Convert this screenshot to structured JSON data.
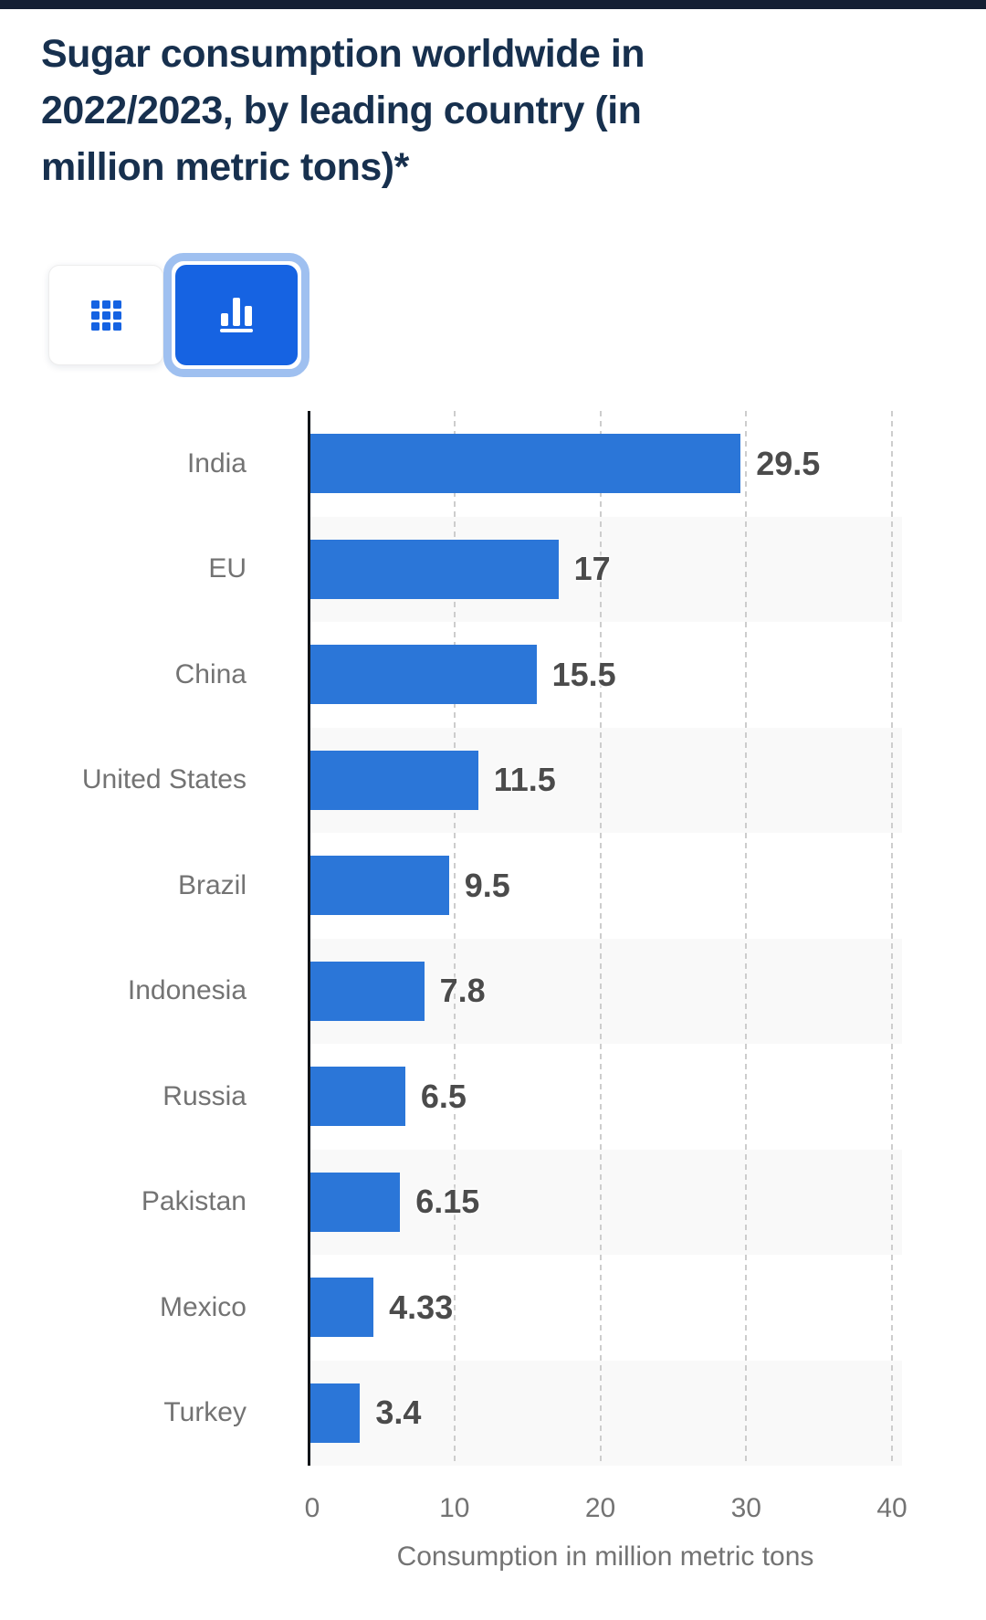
{
  "header": {
    "title": "Sugar consumption worldwide in 2022/2023, by leading country (in million metric tons)*"
  },
  "toolbar": {
    "table_button_icon": "grid-icon",
    "chart_button_icon": "bar-chart-icon",
    "selected_view": "bar-chart"
  },
  "chart_data": {
    "type": "bar",
    "orientation": "horizontal",
    "categories": [
      "India",
      "EU",
      "China",
      "United States",
      "Brazil",
      "Indonesia",
      "Russia",
      "Pakistan",
      "Mexico",
      "Turkey"
    ],
    "values": [
      29.5,
      17,
      15.5,
      11.5,
      9.5,
      7.8,
      6.5,
      6.15,
      4.33,
      3.4
    ],
    "value_labels": [
      "29.5",
      "17",
      "15.5",
      "11.5",
      "9.5",
      "7.8",
      "6.5",
      "6.15",
      "4.33",
      "3.4"
    ],
    "xlabel": "Consumption in million metric tons",
    "xticks": [
      0,
      10,
      20,
      30,
      40
    ],
    "xlim": [
      0,
      40
    ],
    "grid": "vertical-dashed",
    "legend": "none",
    "row_shading": "alternate"
  },
  "style": {
    "bar_color": "#2b76d8",
    "band_color": "#f9f9f9",
    "axis_color": "#111418",
    "grid_color": "#cdcdcd",
    "title_color": "#17304e",
    "topbar_color": "#141f33",
    "button_blue": "#1663e2",
    "ring_blue": "#9fc0f0",
    "label_gray": "#737373",
    "value_gray": "#4b4b4b"
  }
}
